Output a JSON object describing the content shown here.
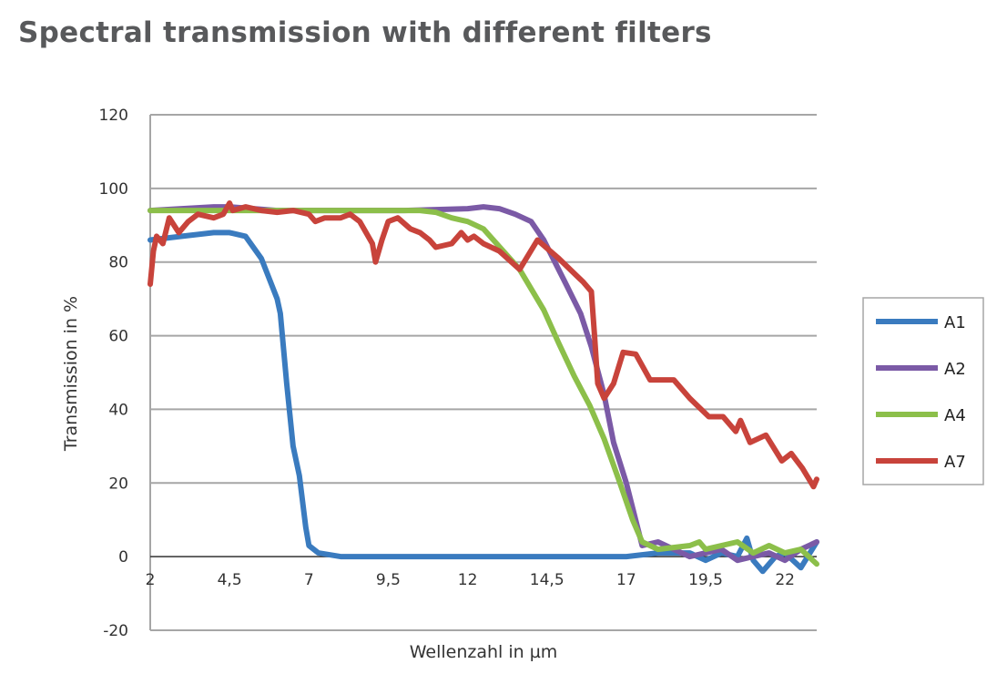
{
  "chart_data": {
    "type": "line",
    "title": "Spectral transmission with different filters",
    "xlabel": "Wellenzahl in µm",
    "ylabel": "Transmission in %",
    "xlim": [
      2,
      23
    ],
    "ylim": [
      -20,
      120
    ],
    "xticks": [
      2,
      4.5,
      7,
      9.5,
      12,
      14.5,
      17,
      19.5,
      22
    ],
    "xtick_labels": [
      "2",
      "4,5",
      "7",
      "9,5",
      "12",
      "14,5",
      "17",
      "19,5",
      "22"
    ],
    "yticks": [
      -20,
      0,
      20,
      40,
      60,
      80,
      100,
      120
    ],
    "ytick_labels": [
      "-20",
      "0",
      "20",
      "40",
      "60",
      "80",
      "100",
      "120"
    ],
    "grid": "horizontal",
    "legend_position": "right",
    "series": [
      {
        "name": "A1",
        "color": "#3a7bbf",
        "x": [
          2.0,
          3.0,
          4.0,
          4.5,
          5.0,
          5.5,
          6.0,
          6.1,
          6.3,
          6.5,
          6.7,
          6.9,
          7.0,
          7.3,
          8,
          10,
          12,
          14,
          16,
          17,
          18,
          19,
          19.5,
          20,
          20.5,
          20.8,
          21.0,
          21.3,
          21.7,
          22,
          22.5,
          23
        ],
        "y": [
          86,
          87,
          88,
          88,
          87,
          81,
          70,
          66,
          47,
          30,
          22,
          8,
          3,
          1,
          0,
          0,
          0,
          0,
          0,
          0,
          1,
          1,
          -1,
          1,
          0,
          5,
          -1,
          -4,
          0,
          1,
          -3,
          4
        ]
      },
      {
        "name": "A2",
        "color": "#7b5aa6",
        "x": [
          2,
          4,
          4.5,
          6,
          8,
          10,
          12,
          12.5,
          13,
          13.5,
          14,
          14.4,
          15.07,
          15.56,
          15.9,
          16.3,
          16.6,
          17.0,
          17.5,
          18,
          18.5,
          19,
          19.5,
          20,
          20.5,
          21,
          21.5,
          22,
          22.5,
          23
        ],
        "y": [
          94,
          95,
          95,
          94,
          94,
          94,
          94.5,
          95,
          94.5,
          93,
          91,
          86,
          74.5,
          66,
          57,
          44,
          31,
          20,
          3,
          4,
          2,
          0,
          1,
          2,
          -1,
          0,
          1,
          -1,
          2,
          4
        ]
      },
      {
        "name": "A4",
        "color": "#8cbf4a",
        "x": [
          2,
          4,
          6,
          8,
          10,
          10.5,
          11,
          11.5,
          12,
          12.5,
          13.64,
          14.4,
          14.87,
          15.36,
          15.85,
          16.3,
          16.8,
          17.2,
          17.5,
          18,
          19,
          19.3,
          19.5,
          20,
          20.5,
          21,
          21.5,
          22,
          22.5,
          23
        ],
        "y": [
          94,
          94,
          94,
          94,
          94,
          94,
          93.5,
          92,
          91,
          89,
          78,
          67,
          58,
          49,
          41,
          32,
          20,
          10,
          4,
          2,
          3,
          4,
          2,
          3,
          4,
          1,
          3,
          1,
          2,
          -2
        ]
      },
      {
        "name": "A7",
        "color": "#c8433b",
        "x": [
          2.0,
          2.1,
          2.2,
          2.4,
          2.6,
          2.9,
          3.2,
          3.5,
          4.0,
          4.3,
          4.5,
          4.6,
          5.0,
          5.5,
          6,
          6.5,
          7,
          7.2,
          7.5,
          8.0,
          8.3,
          8.6,
          9.0,
          9.1,
          9.3,
          9.5,
          9.8,
          10.2,
          10.5,
          10.8,
          11,
          11.5,
          11.8,
          12,
          12.2,
          12.5,
          13,
          13.64,
          14.2,
          14.87,
          15.65,
          15.9,
          16.0,
          16.1,
          16.3,
          16.6,
          16.9,
          17.3,
          17.75,
          18.5,
          19.0,
          19.6,
          20.05,
          20.45,
          20.6,
          20.9,
          21.4,
          21.9,
          22.2,
          22.55,
          22.9,
          23
        ],
        "y": [
          74,
          83,
          87,
          85,
          92,
          88,
          91,
          93,
          92,
          93,
          96,
          94,
          95,
          94,
          93.5,
          94,
          93,
          91,
          92,
          92,
          93,
          91,
          85,
          80,
          86,
          91,
          92,
          89,
          88,
          86,
          84,
          85,
          88,
          86,
          87,
          85,
          83,
          78,
          86,
          81,
          74.5,
          72,
          60,
          47,
          43,
          47,
          55.5,
          55,
          48,
          48,
          43,
          38,
          38,
          34,
          37,
          31,
          33,
          26,
          28,
          24,
          19,
          21
        ]
      }
    ]
  }
}
